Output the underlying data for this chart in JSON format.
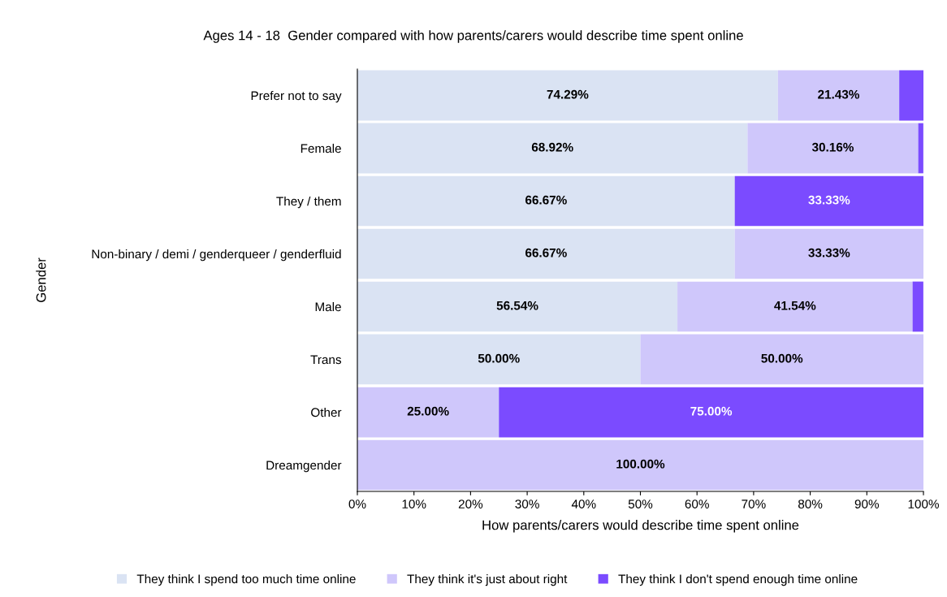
{
  "chart_data": {
    "type": "bar",
    "orientation": "horizontal",
    "stacked": true,
    "title": "Ages 14 - 18  Gender compared with how parents/carers would describe time spent online",
    "xlabel": "How parents/carers would describe time spent online",
    "ylabel": "Gender",
    "categories": [
      "Prefer not to say",
      "Female",
      "They / them",
      "Non-binary / demi / genderqueer / genderfluid",
      "Male",
      "Trans",
      "Other",
      "Dreamgender"
    ],
    "series": [
      {
        "name": "They think I spend too much time online",
        "color": "#dae3f3",
        "values": [
          74.29,
          68.92,
          66.67,
          66.67,
          56.54,
          50.0,
          0,
          0
        ],
        "value_labels": [
          "74.29%",
          "68.92%",
          "66.67%",
          "66.67%",
          "56.54%",
          "50.00%",
          null,
          null
        ]
      },
      {
        "name": "They think it's just about right",
        "color": "#cfc7fb",
        "values": [
          21.43,
          30.16,
          0,
          33.33,
          41.54,
          50.0,
          25.0,
          100.0
        ],
        "value_labels": [
          "21.43%",
          "30.16%",
          null,
          "33.33%",
          "41.54%",
          "50.00%",
          "25.00%",
          "100.00%"
        ]
      },
      {
        "name": "They think I don't spend enough time online",
        "color": "#7b4bff",
        "values": [
          4.3,
          0.9,
          33.33,
          0,
          1.9,
          0,
          75.0,
          0
        ],
        "value_labels": [
          null,
          null,
          "33.33%",
          null,
          null,
          null,
          "75.00%",
          null
        ]
      }
    ],
    "xlim": [
      0,
      100
    ],
    "xticks": [
      {
        "value": 0,
        "label": "0%"
      },
      {
        "value": 10,
        "label": "10%"
      },
      {
        "value": 20,
        "label": "20%"
      },
      {
        "value": 30,
        "label": "30%"
      },
      {
        "value": 40,
        "label": "40%"
      },
      {
        "value": 50,
        "label": "50%"
      },
      {
        "value": 60,
        "label": "60%"
      },
      {
        "value": 70,
        "label": "70%"
      },
      {
        "value": 80,
        "label": "80%"
      },
      {
        "value": 90,
        "label": "90%"
      },
      {
        "value": 100,
        "label": "100%"
      }
    ],
    "legend": "bottom",
    "grid": false
  }
}
